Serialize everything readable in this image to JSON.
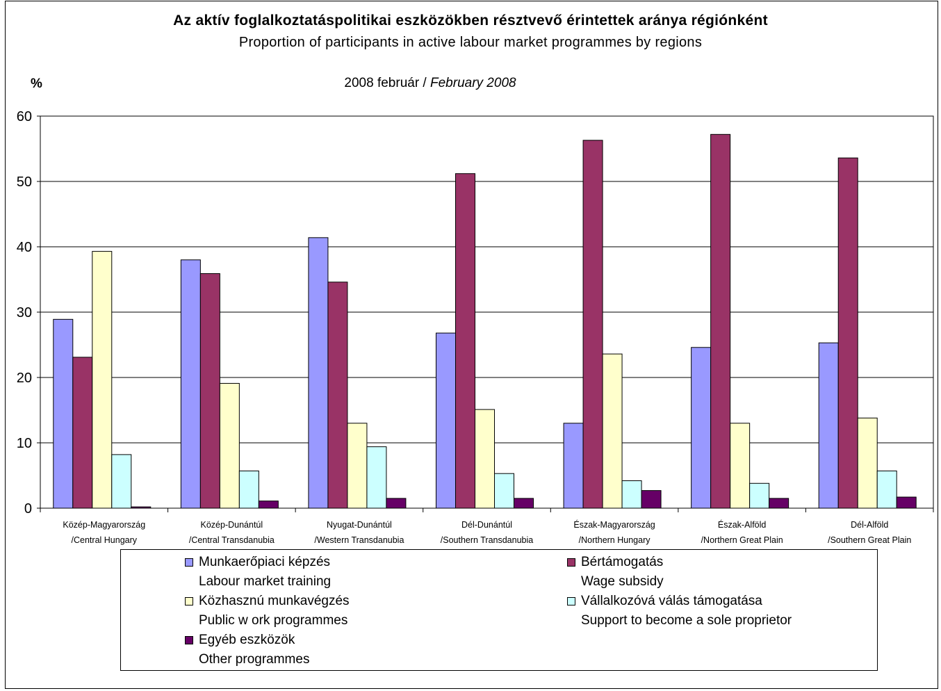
{
  "chart_data": {
    "type": "bar",
    "title": "Az aktív foglalkoztatáspolitikai eszközökben résztvevő érintettek aránya régiónként",
    "subtitle": "Proportion of participants in active labour market programmes by regions",
    "date_hu": "2008 február / ",
    "date_en": "February 2008",
    "ylabel": "%",
    "ylim": [
      0,
      60
    ],
    "yticks": [
      "0",
      "10",
      "20",
      "30",
      "40",
      "50",
      "60"
    ],
    "grid": true,
    "legend_position": "bottom",
    "categories": [
      {
        "line1": "Közép-Magyarország",
        "line2": "/Central Hungary"
      },
      {
        "line1": "Közép-Dunántúl",
        "line2": "/Central Transdanubia"
      },
      {
        "line1": "Nyugat-Dunántúl",
        "line2": "/Western Transdanubia"
      },
      {
        "line1": "Dél-Dunántúl",
        "line2": "/Southern Transdanubia"
      },
      {
        "line1": "Észak-Magyarország",
        "line2": "/Northern Hungary"
      },
      {
        "line1": "Észak-Alföld",
        "line2": "/Northern Great Plain"
      },
      {
        "line1": "Dél-Alföld",
        "line2": "/Southern Great Plain"
      }
    ],
    "series": [
      {
        "name": "Munkaerőpiaci képzés",
        "name_en": "Labour market training",
        "color": "#9999ff",
        "values": [
          28.9,
          38.0,
          41.4,
          26.8,
          13.0,
          24.6,
          25.3
        ]
      },
      {
        "name": "Bértámogatás",
        "name_en": "Wage subsidy",
        "color": "#993366",
        "values": [
          23.1,
          35.9,
          34.6,
          51.2,
          56.3,
          57.2,
          53.6
        ]
      },
      {
        "name": "Közhasznú munkavégzés",
        "name_en": "Public w ork programmes",
        "color": "#ffffcc",
        "values": [
          39.3,
          19.1,
          13.0,
          15.1,
          23.6,
          13.0,
          13.8
        ]
      },
      {
        "name": "Vállalkozóvá válás támogatása",
        "name_en": "Support to become a sole proprietor",
        "color": "#ccffff",
        "values": [
          8.2,
          5.7,
          9.4,
          5.3,
          4.2,
          3.8,
          5.7
        ]
      },
      {
        "name": "Egyéb eszközök",
        "name_en": "Other programmes",
        "color": "#660066",
        "values": [
          0.2,
          1.1,
          1.5,
          1.5,
          2.7,
          1.5,
          1.7
        ]
      }
    ]
  }
}
